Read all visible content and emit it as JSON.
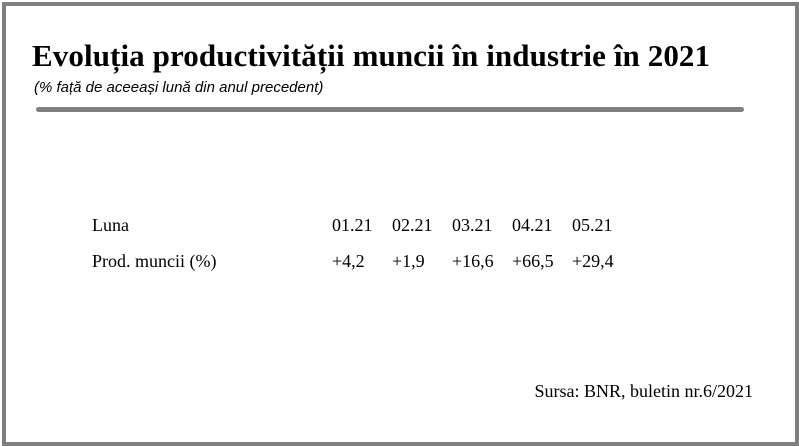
{
  "title": "Evoluția productivității muncii în industrie în 2021",
  "subtitle": "(% față de aceeași lună din anul precedent)",
  "table": {
    "header_label": "Luna",
    "months": [
      "01.21",
      "02.21",
      "03.21",
      "04.21",
      "05.21"
    ],
    "row_label": "Prod. muncii (%)",
    "values": [
      "+4,2",
      "+1,9",
      "+16,6",
      "+66,5",
      "+29,4"
    ]
  },
  "source": "Sursa: BNR, buletin nr.6/2021",
  "colors": {
    "frame": "#7f7f7f",
    "rule": "#808080",
    "text": "#000000",
    "background": "#ffffff"
  }
}
